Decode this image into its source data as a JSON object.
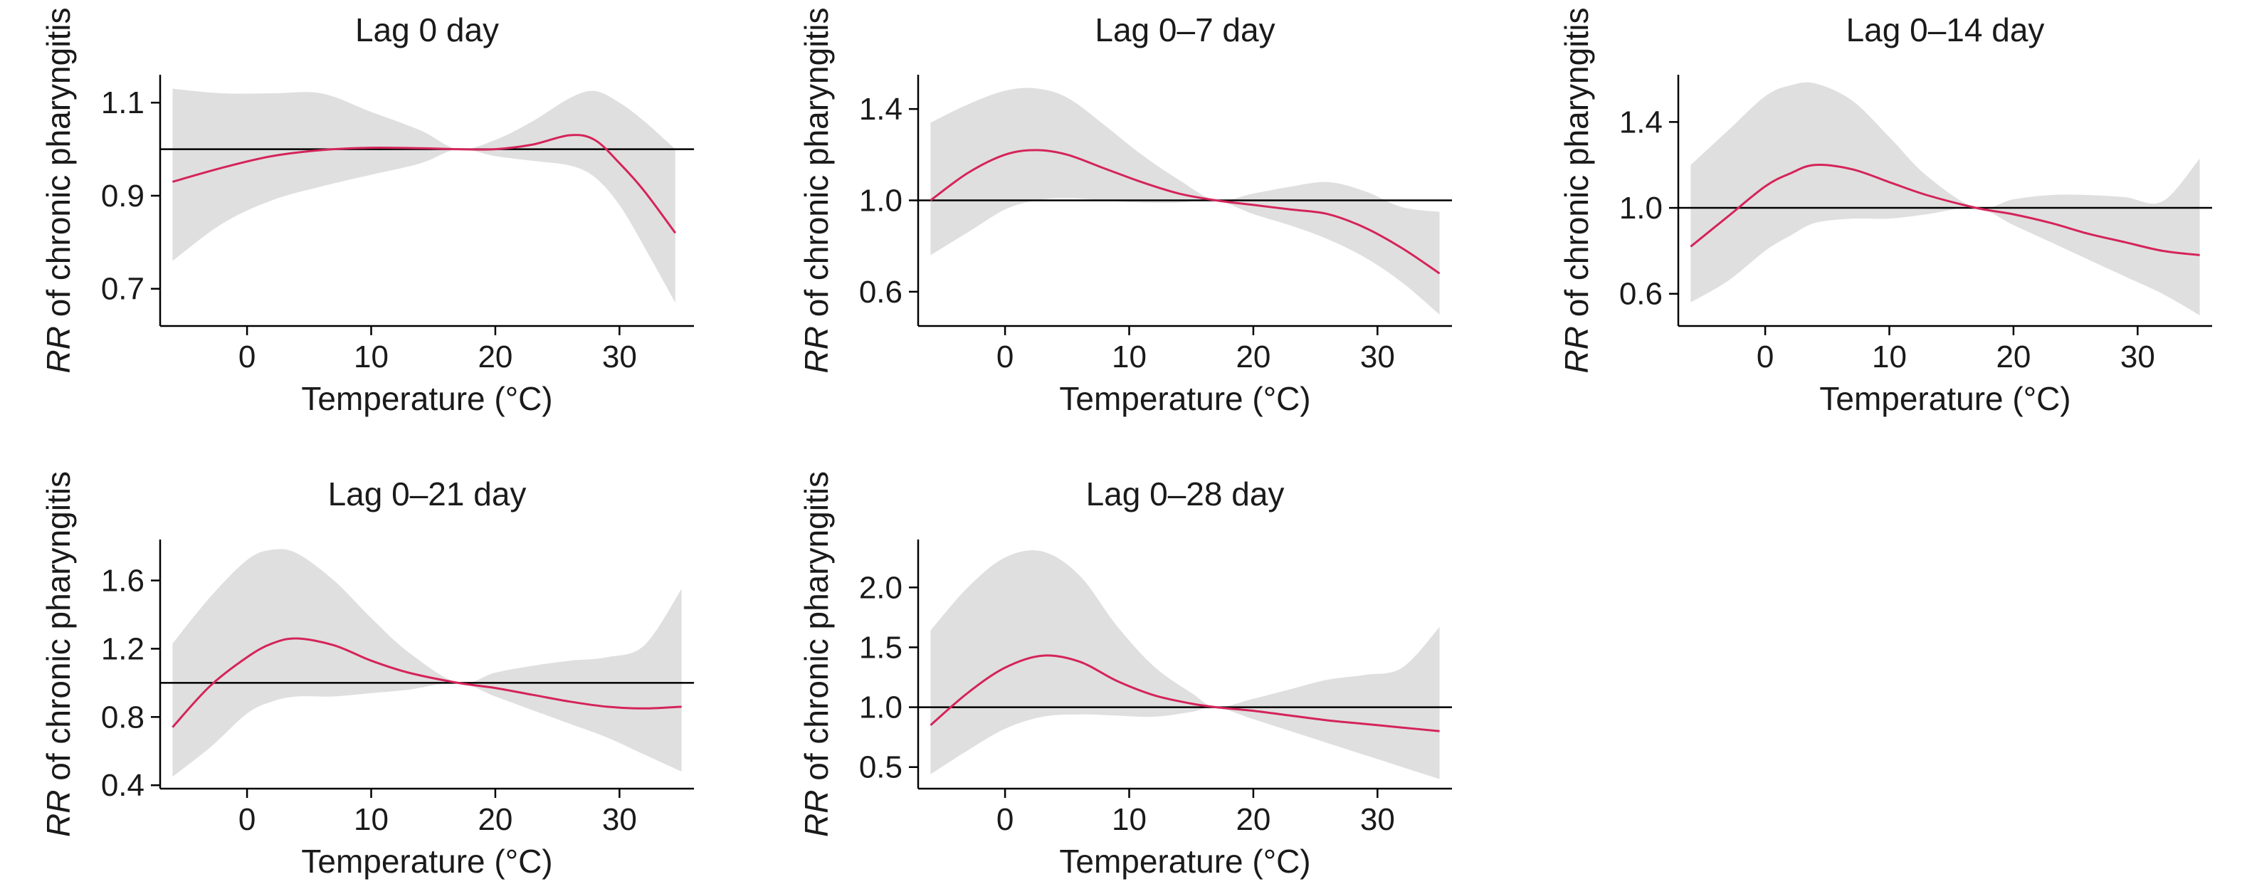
{
  "chart_data": [
    {
      "type": "line",
      "title": "Lag 0 day",
      "xlabel": "Temperature (°C)",
      "ylabel_italic": "RR",
      "ylabel_rest": " of chronic pharyngitis",
      "xlim": [
        -7,
        36
      ],
      "ylim": [
        0.62,
        1.16
      ],
      "xticks": [
        0,
        10,
        20,
        30
      ],
      "yticks": [
        0.7,
        0.9,
        1.1
      ],
      "ytick_labels": [
        "0.7",
        "0.9",
        "1.1"
      ],
      "reference_line": 1.0,
      "ci_color": "#e0dfdf",
      "line_color": "#d4245a",
      "series": [
        {
          "x": [
            -6,
            -2,
            2,
            6,
            10,
            14,
            17,
            20,
            23,
            26,
            28,
            30,
            32,
            34.5
          ],
          "y": [
            0.93,
            0.96,
            0.985,
            0.998,
            1.003,
            1.002,
            1.0,
            1.0,
            1.01,
            1.03,
            1.02,
            0.97,
            0.91,
            0.82
          ],
          "lower": [
            0.76,
            0.84,
            0.89,
            0.92,
            0.945,
            0.97,
            1.0,
            0.985,
            0.975,
            0.965,
            0.94,
            0.88,
            0.79,
            0.67
          ],
          "upper": [
            1.13,
            1.12,
            1.12,
            1.12,
            1.08,
            1.04,
            1.0,
            1.02,
            1.06,
            1.11,
            1.125,
            1.1,
            1.06,
            1.0
          ]
        }
      ]
    },
    {
      "type": "line",
      "title": "Lag 0–7 day",
      "xlabel": "Temperature (°C)",
      "ylabel_italic": "RR",
      "ylabel_rest": " of chronic pharyngitis",
      "xlim": [
        -7,
        36
      ],
      "ylim": [
        0.45,
        1.55
      ],
      "xticks": [
        0,
        10,
        20,
        30
      ],
      "yticks": [
        0.6,
        1.0,
        1.4
      ],
      "ytick_labels": [
        "0.6",
        "1.0",
        "1.4"
      ],
      "reference_line": 1.0,
      "ci_color": "#e0dfdf",
      "line_color": "#d4245a",
      "series": [
        {
          "x": [
            -6,
            -3,
            0,
            2.5,
            5,
            8,
            11,
            14,
            17,
            20,
            23,
            26,
            29,
            32,
            35
          ],
          "y": [
            1.0,
            1.12,
            1.2,
            1.22,
            1.2,
            1.14,
            1.08,
            1.03,
            1.0,
            0.98,
            0.96,
            0.94,
            0.88,
            0.79,
            0.68
          ],
          "lower": [
            0.76,
            0.86,
            0.96,
            1.0,
            1.01,
            1.0,
            0.99,
            0.99,
            1.0,
            0.94,
            0.89,
            0.83,
            0.75,
            0.64,
            0.5
          ],
          "upper": [
            1.34,
            1.42,
            1.48,
            1.49,
            1.45,
            1.33,
            1.2,
            1.09,
            1.0,
            1.03,
            1.06,
            1.08,
            1.04,
            0.97,
            0.95
          ]
        }
      ]
    },
    {
      "type": "line",
      "title": "Lag 0–14 day",
      "xlabel": "Temperature (°C)",
      "ylabel_italic": "RR",
      "ylabel_rest": " of chronic pharyngitis",
      "xlim": [
        -7,
        36
      ],
      "ylim": [
        0.45,
        1.62
      ],
      "xticks": [
        0,
        10,
        20,
        30
      ],
      "yticks": [
        0.6,
        1.0,
        1.4
      ],
      "ytick_labels": [
        "0.6",
        "1.0",
        "1.4"
      ],
      "reference_line": 1.0,
      "ci_color": "#e0dfdf",
      "line_color": "#d4245a",
      "series": [
        {
          "x": [
            -6,
            -3,
            0,
            2,
            4,
            7,
            10,
            13,
            17,
            20,
            23,
            26,
            29,
            32,
            35
          ],
          "y": [
            0.82,
            0.96,
            1.1,
            1.16,
            1.2,
            1.18,
            1.12,
            1.06,
            1.0,
            0.97,
            0.93,
            0.88,
            0.84,
            0.8,
            0.78
          ],
          "lower": [
            0.56,
            0.66,
            0.8,
            0.87,
            0.93,
            0.95,
            0.95,
            0.97,
            1.0,
            0.92,
            0.84,
            0.76,
            0.68,
            0.6,
            0.5
          ],
          "upper": [
            1.2,
            1.36,
            1.52,
            1.57,
            1.58,
            1.5,
            1.33,
            1.15,
            1.0,
            1.04,
            1.06,
            1.06,
            1.05,
            1.03,
            1.23
          ]
        }
      ]
    },
    {
      "type": "line",
      "title": "Lag 0–21 day",
      "xlabel": "Temperature (°C)",
      "ylabel_italic": "RR",
      "ylabel_rest": " of chronic pharyngitis",
      "xlim": [
        -7,
        36
      ],
      "ylim": [
        0.38,
        1.84
      ],
      "xticks": [
        0,
        10,
        20,
        30
      ],
      "yticks": [
        0.4,
        0.8,
        1.2,
        1.6
      ],
      "ytick_labels": [
        "0.4",
        "0.8",
        "1.2",
        "1.6"
      ],
      "reference_line": 1.0,
      "ci_color": "#e0dfdf",
      "line_color": "#d4245a",
      "series": [
        {
          "x": [
            -6,
            -3,
            0,
            2,
            4,
            7,
            10,
            13,
            17,
            20,
            23,
            26,
            29,
            32,
            35
          ],
          "y": [
            0.74,
            0.98,
            1.15,
            1.23,
            1.26,
            1.22,
            1.13,
            1.06,
            1.0,
            0.97,
            0.93,
            0.89,
            0.86,
            0.85,
            0.86
          ],
          "lower": [
            0.45,
            0.62,
            0.82,
            0.89,
            0.92,
            0.92,
            0.94,
            0.96,
            1.0,
            0.92,
            0.84,
            0.76,
            0.68,
            0.58,
            0.48
          ],
          "upper": [
            1.23,
            1.5,
            1.72,
            1.78,
            1.76,
            1.6,
            1.38,
            1.18,
            1.0,
            1.06,
            1.1,
            1.13,
            1.15,
            1.22,
            1.55
          ]
        }
      ]
    },
    {
      "type": "line",
      "title": "Lag 0–28 day",
      "xlabel": "Temperature (°C)",
      "ylabel_italic": "RR",
      "ylabel_rest": " of chronic pharyngitis",
      "xlim": [
        -7,
        36
      ],
      "ylim": [
        0.32,
        2.4
      ],
      "xticks": [
        0,
        10,
        20,
        30
      ],
      "yticks": [
        0.5,
        1.0,
        1.5,
        2.0
      ],
      "ytick_labels": [
        "0.5",
        "1.0",
        "1.5",
        "2.0"
      ],
      "reference_line": 1.0,
      "ci_color": "#e0dfdf",
      "line_color": "#d4245a",
      "series": [
        {
          "x": [
            -6,
            -3,
            0,
            3,
            6,
            9,
            12,
            15,
            17,
            20,
            23,
            26,
            29,
            32,
            35
          ],
          "y": [
            0.85,
            1.12,
            1.33,
            1.43,
            1.38,
            1.22,
            1.1,
            1.03,
            1.0,
            0.97,
            0.93,
            0.89,
            0.86,
            0.83,
            0.8
          ],
          "lower": [
            0.44,
            0.64,
            0.82,
            0.92,
            0.94,
            0.93,
            0.92,
            0.96,
            1.0,
            0.9,
            0.8,
            0.7,
            0.6,
            0.5,
            0.4
          ],
          "upper": [
            1.64,
            2.0,
            2.25,
            2.3,
            2.1,
            1.68,
            1.34,
            1.12,
            1.0,
            1.07,
            1.15,
            1.23,
            1.27,
            1.33,
            1.67
          ]
        }
      ]
    }
  ]
}
